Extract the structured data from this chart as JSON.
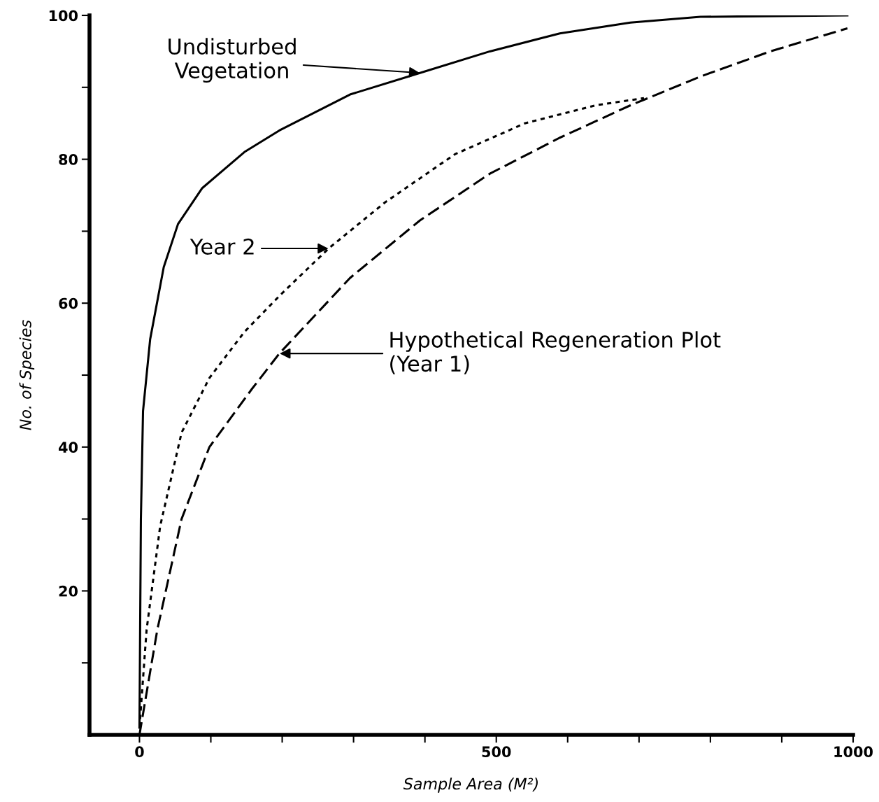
{
  "chart_data": {
    "type": "line",
    "xlabel": "Sample Area (M²)",
    "ylabel": "No. of Species",
    "xlim": [
      -70,
      1000
    ],
    "ylim": [
      0,
      100
    ],
    "xticks": [
      0,
      {
        "value": 100,
        "label": null
      },
      {
        "value": 200,
        "label": null
      },
      {
        "value": 300,
        "label": null
      },
      {
        "value": 400,
        "label": null
      },
      500,
      {
        "value": 600,
        "label": null
      },
      {
        "value": 700,
        "label": null
      },
      {
        "value": 800,
        "label": null
      },
      {
        "value": 900,
        "label": null
      },
      1000
    ],
    "yticks": [
      {
        "value": 10,
        "label": null
      },
      20,
      {
        "value": 30,
        "label": null
      },
      40,
      {
        "value": 50,
        "label": null
      },
      60,
      {
        "value": 70,
        "label": null
      },
      80,
      {
        "value": 90,
        "label": null
      },
      100
    ],
    "grid": false,
    "legend": false,
    "series": [
      {
        "color": "#000000",
        "line_style": "solid",
        "x": [
          0,
          2,
          5,
          15,
          34,
          54,
          88,
          147,
          196,
          295,
          393,
          491,
          589,
          688,
          786,
          992
        ],
        "values": [
          1,
          30,
          45,
          55,
          65,
          71,
          76,
          81,
          84,
          89,
          92,
          95,
          97.5,
          99,
          99.8,
          100
        ]
      },
      {
        "color": "#000000",
        "line_style": "dotted",
        "x": [
          0,
          10,
          29,
          59,
          98,
          147,
          196,
          265,
          344,
          442,
          540,
          639,
          707
        ],
        "values": [
          1,
          14.6,
          29,
          42,
          49.6,
          56,
          61,
          67.6,
          74,
          80.7,
          85,
          87.5,
          88.5
        ]
      },
      {
        "color": "#000000",
        "line_style": "dashed",
        "x": [
          0,
          25,
          59,
          98,
          157,
          196,
          295,
          393,
          491,
          589,
          688,
          786,
          884,
          992
        ],
        "values": [
          0,
          14.6,
          30,
          40,
          48,
          53,
          63.5,
          71.5,
          78,
          83,
          87.5,
          91.5,
          95,
          98.2
        ]
      }
    ],
    "annotations": [
      {
        "text": "Undisturbed\nVegetation",
        "x": 393,
        "y": 92
      },
      "Year 2",
      "Hypothetical Regeneration Plot\n(Year 1)"
    ]
  }
}
